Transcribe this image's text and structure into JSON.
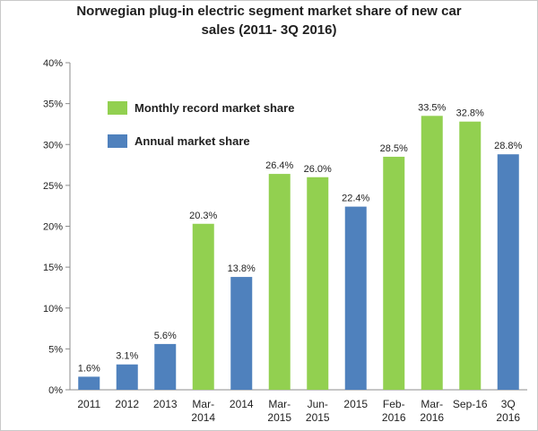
{
  "chart_data": {
    "type": "bar",
    "title": [
      "Norwegian plug-in electric segment market share of new car",
      "sales  (2011- 3Q 2016)"
    ],
    "categories": [
      [
        "2011"
      ],
      [
        "2012"
      ],
      [
        "2013"
      ],
      [
        "Mar-",
        "2014"
      ],
      [
        "2014"
      ],
      [
        "Mar-",
        "2015"
      ],
      [
        "Jun-",
        "2015"
      ],
      [
        "2015"
      ],
      [
        "Feb-",
        "2016"
      ],
      [
        "Mar-",
        "2016"
      ],
      [
        "Sep-16"
      ],
      [
        "3Q",
        "2016"
      ]
    ],
    "values": [
      1.6,
      3.1,
      5.6,
      20.3,
      13.8,
      26.4,
      26.0,
      22.4,
      28.5,
      33.5,
      32.8,
      28.8
    ],
    "data_labels": [
      "1.6%",
      "3.1%",
      "5.6%",
      "20.3%",
      "13.8%",
      "26.4%",
      "26.0%",
      "22.4%",
      "28.5%",
      "33.5%",
      "32.8%",
      "28.8%"
    ],
    "series_type": [
      "annual",
      "annual",
      "annual",
      "monthly",
      "annual",
      "monthly",
      "monthly",
      "annual",
      "monthly",
      "monthly",
      "monthly",
      "annual"
    ],
    "legend": [
      {
        "key": "monthly",
        "label": "Monthly record market share",
        "color": "#92d050"
      },
      {
        "key": "annual",
        "label": "Annual market share",
        "color": "#4f81bd"
      }
    ],
    "legend_position": "top-left inside plot",
    "ylim": [
      0,
      40
    ],
    "yticks": [
      0,
      5,
      10,
      15,
      20,
      25,
      30,
      35,
      40
    ],
    "ytick_labels": [
      "0%",
      "5%",
      "10%",
      "15%",
      "20%",
      "25%",
      "30%",
      "35%",
      "40%"
    ],
    "grid": false,
    "xlabel": "",
    "ylabel": ""
  }
}
